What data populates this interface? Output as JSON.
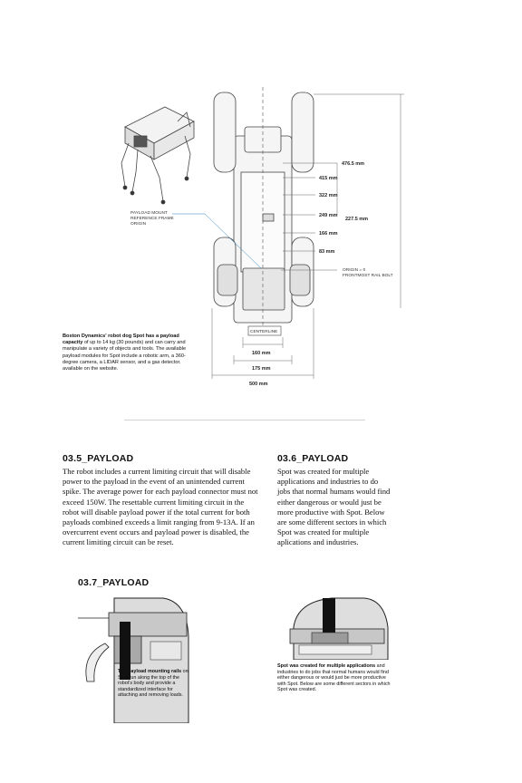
{
  "diagram": {
    "labels": {
      "dim_4765": "476.5 mm",
      "dim_415": "415 mm",
      "dim_322": "322 mm",
      "dim_249": "249 mm",
      "dim_2275": "227.5 mm",
      "dim_166": "166 mm",
      "dim_83": "83 mm",
      "dim_160": "160 mm",
      "dim_175": "175 mm",
      "dim_500": "500 mm",
      "centerline": "CENTERLINE",
      "payload_mount_1": "PAYLOAD MOUNT",
      "payload_mount_2": "REFERENCE FRAME",
      "payload_mount_3": "ORIGIN",
      "origin_1": "ORIGIN = 0",
      "origin_2": "FRONTMOST RAIL BOLT"
    }
  },
  "caption_top": {
    "bold": "Boston Dynamics' robot dog Spot has a payload capacity",
    "rest": " of up to 14 kg (30 pounds) and can carry and manipulate a variety of objects and tools. The available payload modules for Spot include a robotic arm, a 360-degree camera, a LIDAR sensor, and a gas detector. available on the website."
  },
  "section_35": {
    "title": "03.5_PAYLOAD",
    "body": "The robot includes a current limiting circuit that will disable power to the payload in the event of an unintended current spike. The average power for each payload connector must not exceed 150W. The resettable current limiting circuit in the robot will disable payload power if the total current for both payloads combined exceeds a limit ranging from 9-13A. If an overcurrent event occurs and payload power is disabled, the current limiting circuit can be reset."
  },
  "section_36": {
    "title": "03.6_PAYLOAD",
    "body": "Spot was created for multiple applications and industries to do jobs that normal humans would find either dangerous or would just be more productive with Spot. Below are some different sectors in which Spot was created for multiple aplications and industries."
  },
  "section_37": {
    "title": "03.7_PAYLOAD"
  },
  "figure_left": {
    "bold": "The payload mounting rails",
    "rest": " on Spot run along the top of the robot's body and provide a standardized interface for attaching and removing loads."
  },
  "figure_right": {
    "bold": "Spot was created for multiple applications",
    "rest": " and industries to do jobs that normal humans would find either dangerous or would just be more productive with Spot. Below are some different sectors in which Spot was created."
  }
}
